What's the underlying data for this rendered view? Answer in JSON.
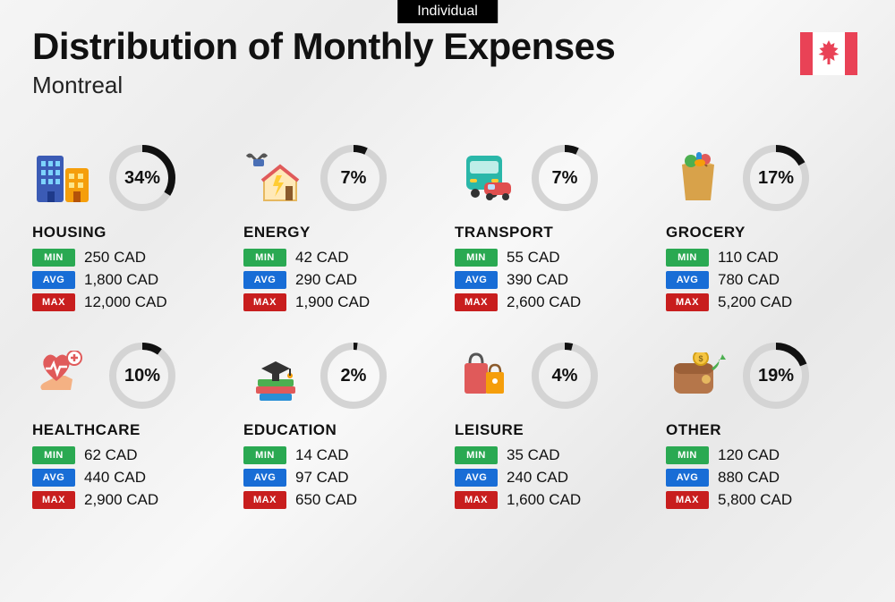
{
  "tag": "Individual",
  "title": "Distribution of Monthly Expenses",
  "city": "Montreal",
  "flag_color": "#e94256",
  "ring": {
    "track_color": "#d4d4d4",
    "progress_color": "#111111",
    "stroke_width": 8,
    "radius": 33
  },
  "badges": {
    "min": {
      "label": "MIN",
      "color": "#2aa952"
    },
    "avg": {
      "label": "AVG",
      "color": "#186dd6"
    },
    "max": {
      "label": "MAX",
      "color": "#c81e1e"
    }
  },
  "currency": "CAD",
  "categories": [
    {
      "key": "housing",
      "name": "HOUSING",
      "percent": 34,
      "min": "250",
      "avg": "1,800",
      "max": "12,000",
      "icon": "housing"
    },
    {
      "key": "energy",
      "name": "ENERGY",
      "percent": 7,
      "min": "42",
      "avg": "290",
      "max": "1,900",
      "icon": "energy"
    },
    {
      "key": "transport",
      "name": "TRANSPORT",
      "percent": 7,
      "min": "55",
      "avg": "390",
      "max": "2,600",
      "icon": "transport"
    },
    {
      "key": "grocery",
      "name": "GROCERY",
      "percent": 17,
      "min": "110",
      "avg": "780",
      "max": "5,200",
      "icon": "grocery"
    },
    {
      "key": "healthcare",
      "name": "HEALTHCARE",
      "percent": 10,
      "min": "62",
      "avg": "440",
      "max": "2,900",
      "icon": "healthcare"
    },
    {
      "key": "education",
      "name": "EDUCATION",
      "percent": 2,
      "min": "14",
      "avg": "97",
      "max": "650",
      "icon": "education"
    },
    {
      "key": "leisure",
      "name": "LEISURE",
      "percent": 4,
      "min": "35",
      "avg": "240",
      "max": "1,600",
      "icon": "leisure"
    },
    {
      "key": "other",
      "name": "OTHER",
      "percent": 19,
      "min": "120",
      "avg": "880",
      "max": "5,800",
      "icon": "other"
    }
  ]
}
